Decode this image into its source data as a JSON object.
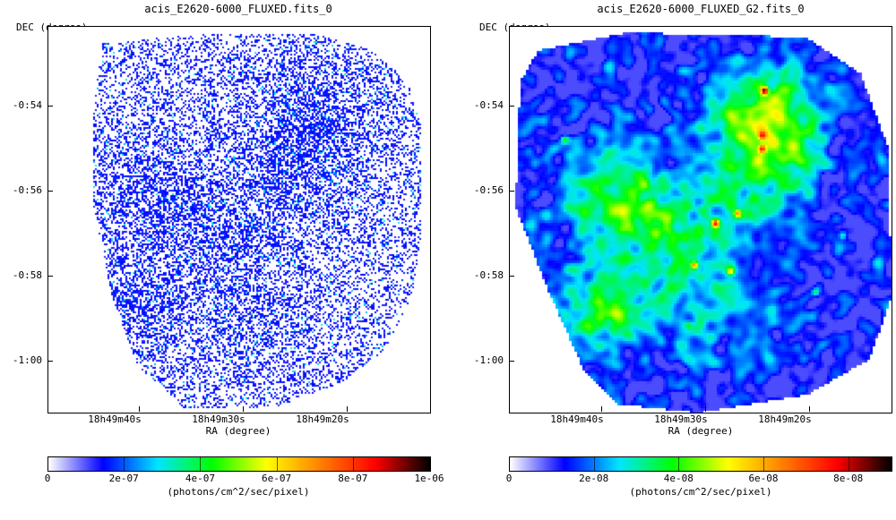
{
  "panels": [
    {
      "title": "acis_E2620-6000_FLUXED.fits_0",
      "ylabel": "DEC (degree)",
      "xlabel": "RA (degree)",
      "y_ticks": [
        "-0:54",
        "-0:56",
        "-0:58",
        "-1:00"
      ],
      "x_ticks": [
        "18h49m40s",
        "18h49m30s",
        "18h49m20s"
      ],
      "colorbar": {
        "ticks": [
          "0",
          "2e-07",
          "4e-07",
          "6e-07",
          "8e-07",
          "1e-06"
        ],
        "tick_values": [
          0,
          2e-07,
          4e-07,
          6e-07,
          8e-07,
          1e-06
        ],
        "range": [
          0,
          1e-06
        ],
        "label": "(photons/cm^2/sec/pixel)"
      },
      "image_style": "sparse-unsmoothed"
    },
    {
      "title": "acis_E2620-6000_FLUXED_G2.fits_0",
      "ylabel": "DEC (degree)",
      "xlabel": "RA (degree)",
      "y_ticks": [
        "-0:54",
        "-0:56",
        "-0:58",
        "-1:00"
      ],
      "x_ticks": [
        "18h49m40s",
        "18h49m30s",
        "18h49m20s"
      ],
      "colorbar": {
        "ticks": [
          "0",
          "2e-08",
          "4e-08",
          "6e-08",
          "8e-08"
        ],
        "tick_values": [
          0,
          2e-08,
          4e-08,
          6e-08,
          8e-08
        ],
        "range": [
          0,
          9e-08
        ],
        "label": "(photons/cm^2/sec/pixel)"
      },
      "image_style": "gaussian-smoothed"
    }
  ],
  "colormap": [
    "#ffffff",
    "#0000ff",
    "#00e5ff",
    "#00ff00",
    "#ffff00",
    "#ff8000",
    "#ff0000",
    "#000000"
  ]
}
